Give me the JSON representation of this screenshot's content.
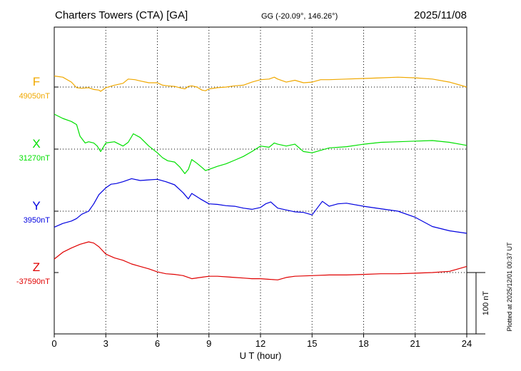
{
  "header": {
    "station": "Charters Towers (CTA)  [GA]",
    "coords": "GG (-20.09°, 146.26°)",
    "date": "2025/11/08"
  },
  "footer": {
    "plotted": "Plotted at 2025/12/01 00:37 UT",
    "scale_label": "100 nT"
  },
  "chart_data": {
    "type": "line",
    "xlabel": "U T (hour)",
    "xlim": [
      0,
      24
    ],
    "xticks": [
      "0",
      "3",
      "6",
      "9",
      "12",
      "15",
      "18",
      "21",
      "24"
    ],
    "scale_bar_nT": 100,
    "grid": true,
    "series": [
      {
        "name": "F",
        "baseline_label": "49050nT",
        "baseline": 49050,
        "color": "#f0a800",
        "x": [
          0,
          0.5,
          1,
          1.3,
          1.6,
          2,
          2.3,
          2.6,
          2.7,
          3,
          3.5,
          4,
          4.3,
          4.7,
          5,
          5.5,
          6,
          6.3,
          6.6,
          7,
          7.3,
          7.6,
          7.8,
          8,
          8.3,
          8.6,
          8.8,
          9,
          9.5,
          10,
          10.5,
          11,
          11.5,
          12,
          12.5,
          12.8,
          13,
          13.5,
          14,
          14.5,
          15,
          15.5,
          16,
          17,
          18,
          19,
          20,
          21,
          22,
          23,
          24
        ],
        "y": [
          49068,
          49066,
          49058,
          49049,
          49048,
          49049,
          49046,
          49045,
          49043,
          49049,
          49053,
          49056,
          49063,
          49062,
          49060,
          49057,
          49057,
          49053,
          49052,
          49051,
          49049,
          49047,
          49051,
          49052,
          49050,
          49045,
          49044,
          49047,
          49049,
          49050,
          49052,
          49053,
          49058,
          49062,
          49063,
          49066,
          49063,
          49058,
          49061,
          49057,
          49058,
          49062,
          49062,
          49063,
          49064,
          49065,
          49066,
          49065,
          49063,
          49058,
          49050
        ]
      },
      {
        "name": "X",
        "baseline_label": "31270nT",
        "baseline": 31270,
        "color": "#00e000",
        "x": [
          0,
          0.5,
          1,
          1.3,
          1.5,
          1.8,
          2,
          2.3,
          2.5,
          2.7,
          3,
          3.5,
          4,
          4.3,
          4.6,
          5,
          5.5,
          6,
          6.3,
          6.6,
          7,
          7.3,
          7.6,
          7.8,
          8,
          8.3,
          8.6,
          8.8,
          9,
          9.5,
          10,
          10.5,
          11,
          11.5,
          12,
          12.5,
          12.8,
          13,
          13.5,
          14,
          14.5,
          15,
          15.5,
          16,
          17,
          18,
          19,
          20,
          21,
          22,
          23,
          24
        ],
        "y": [
          31327,
          31320,
          31315,
          31310,
          31291,
          31280,
          31282,
          31280,
          31275,
          31266,
          31280,
          31282,
          31275,
          31281,
          31295,
          31289,
          31275,
          31264,
          31256,
          31251,
          31249,
          31241,
          31230,
          31237,
          31253,
          31247,
          31240,
          31235,
          31237,
          31242,
          31246,
          31252,
          31258,
          31266,
          31275,
          31273,
          31280,
          31278,
          31275,
          31278,
          31266,
          31264,
          31268,
          31272,
          31274,
          31278,
          31281,
          31282,
          31283,
          31284,
          31281,
          31276
        ]
      },
      {
        "name": "Y",
        "baseline_label": "3950nT",
        "baseline": 3950,
        "color": "#0000e0",
        "x": [
          0,
          0.5,
          1,
          1.3,
          1.6,
          2,
          2.3,
          2.6,
          3,
          3.3,
          3.6,
          4,
          4.5,
          5,
          5.5,
          6,
          6.5,
          7,
          7.5,
          7.8,
          8,
          8.5,
          9,
          9.5,
          10,
          10.5,
          11,
          11.5,
          12,
          12.3,
          12.6,
          13,
          13.5,
          14,
          14.5,
          15,
          15.3,
          15.6,
          16,
          16.5,
          17,
          18,
          19,
          20,
          21,
          22,
          23,
          24
        ],
        "y": [
          3924,
          3930,
          3934,
          3938,
          3945,
          3950,
          3962,
          3977,
          3988,
          3994,
          3995,
          3998,
          4003,
          4000,
          4001,
          4002,
          3998,
          3993,
          3980,
          3970,
          3979,
          3970,
          3962,
          3961,
          3959,
          3958,
          3955,
          3953,
          3956,
          3962,
          3965,
          3955,
          3952,
          3949,
          3948,
          3944,
          3955,
          3966,
          3958,
          3962,
          3963,
          3958,
          3954,
          3950,
          3940,
          3925,
          3918,
          3914
        ]
      },
      {
        "name": "Z",
        "baseline_label": "-37590nT",
        "baseline": -37590,
        "color": "#e00000",
        "x": [
          0,
          0.5,
          1,
          1.5,
          2,
          2.3,
          2.6,
          3,
          3.5,
          4,
          4.5,
          5,
          5.5,
          6,
          6.5,
          7,
          7.5,
          8,
          8.5,
          9,
          9.5,
          10,
          10.5,
          11,
          11.5,
          12,
          12.5,
          13,
          13.5,
          14,
          15,
          16,
          17,
          18,
          19,
          20,
          21,
          22,
          23,
          24
        ],
        "y": [
          -37568,
          -37557,
          -37550,
          -37544,
          -37540,
          -37542,
          -37548,
          -37560,
          -37566,
          -37570,
          -37576,
          -37580,
          -37584,
          -37589,
          -37592,
          -37593,
          -37595,
          -37600,
          -37598,
          -37596,
          -37596,
          -37597,
          -37598,
          -37599,
          -37600,
          -37600,
          -37601,
          -37602,
          -37598,
          -37596,
          -37595,
          -37594,
          -37594,
          -37593,
          -37592,
          -37592,
          -37591,
          -37590,
          -37588,
          -37580
        ]
      }
    ]
  }
}
